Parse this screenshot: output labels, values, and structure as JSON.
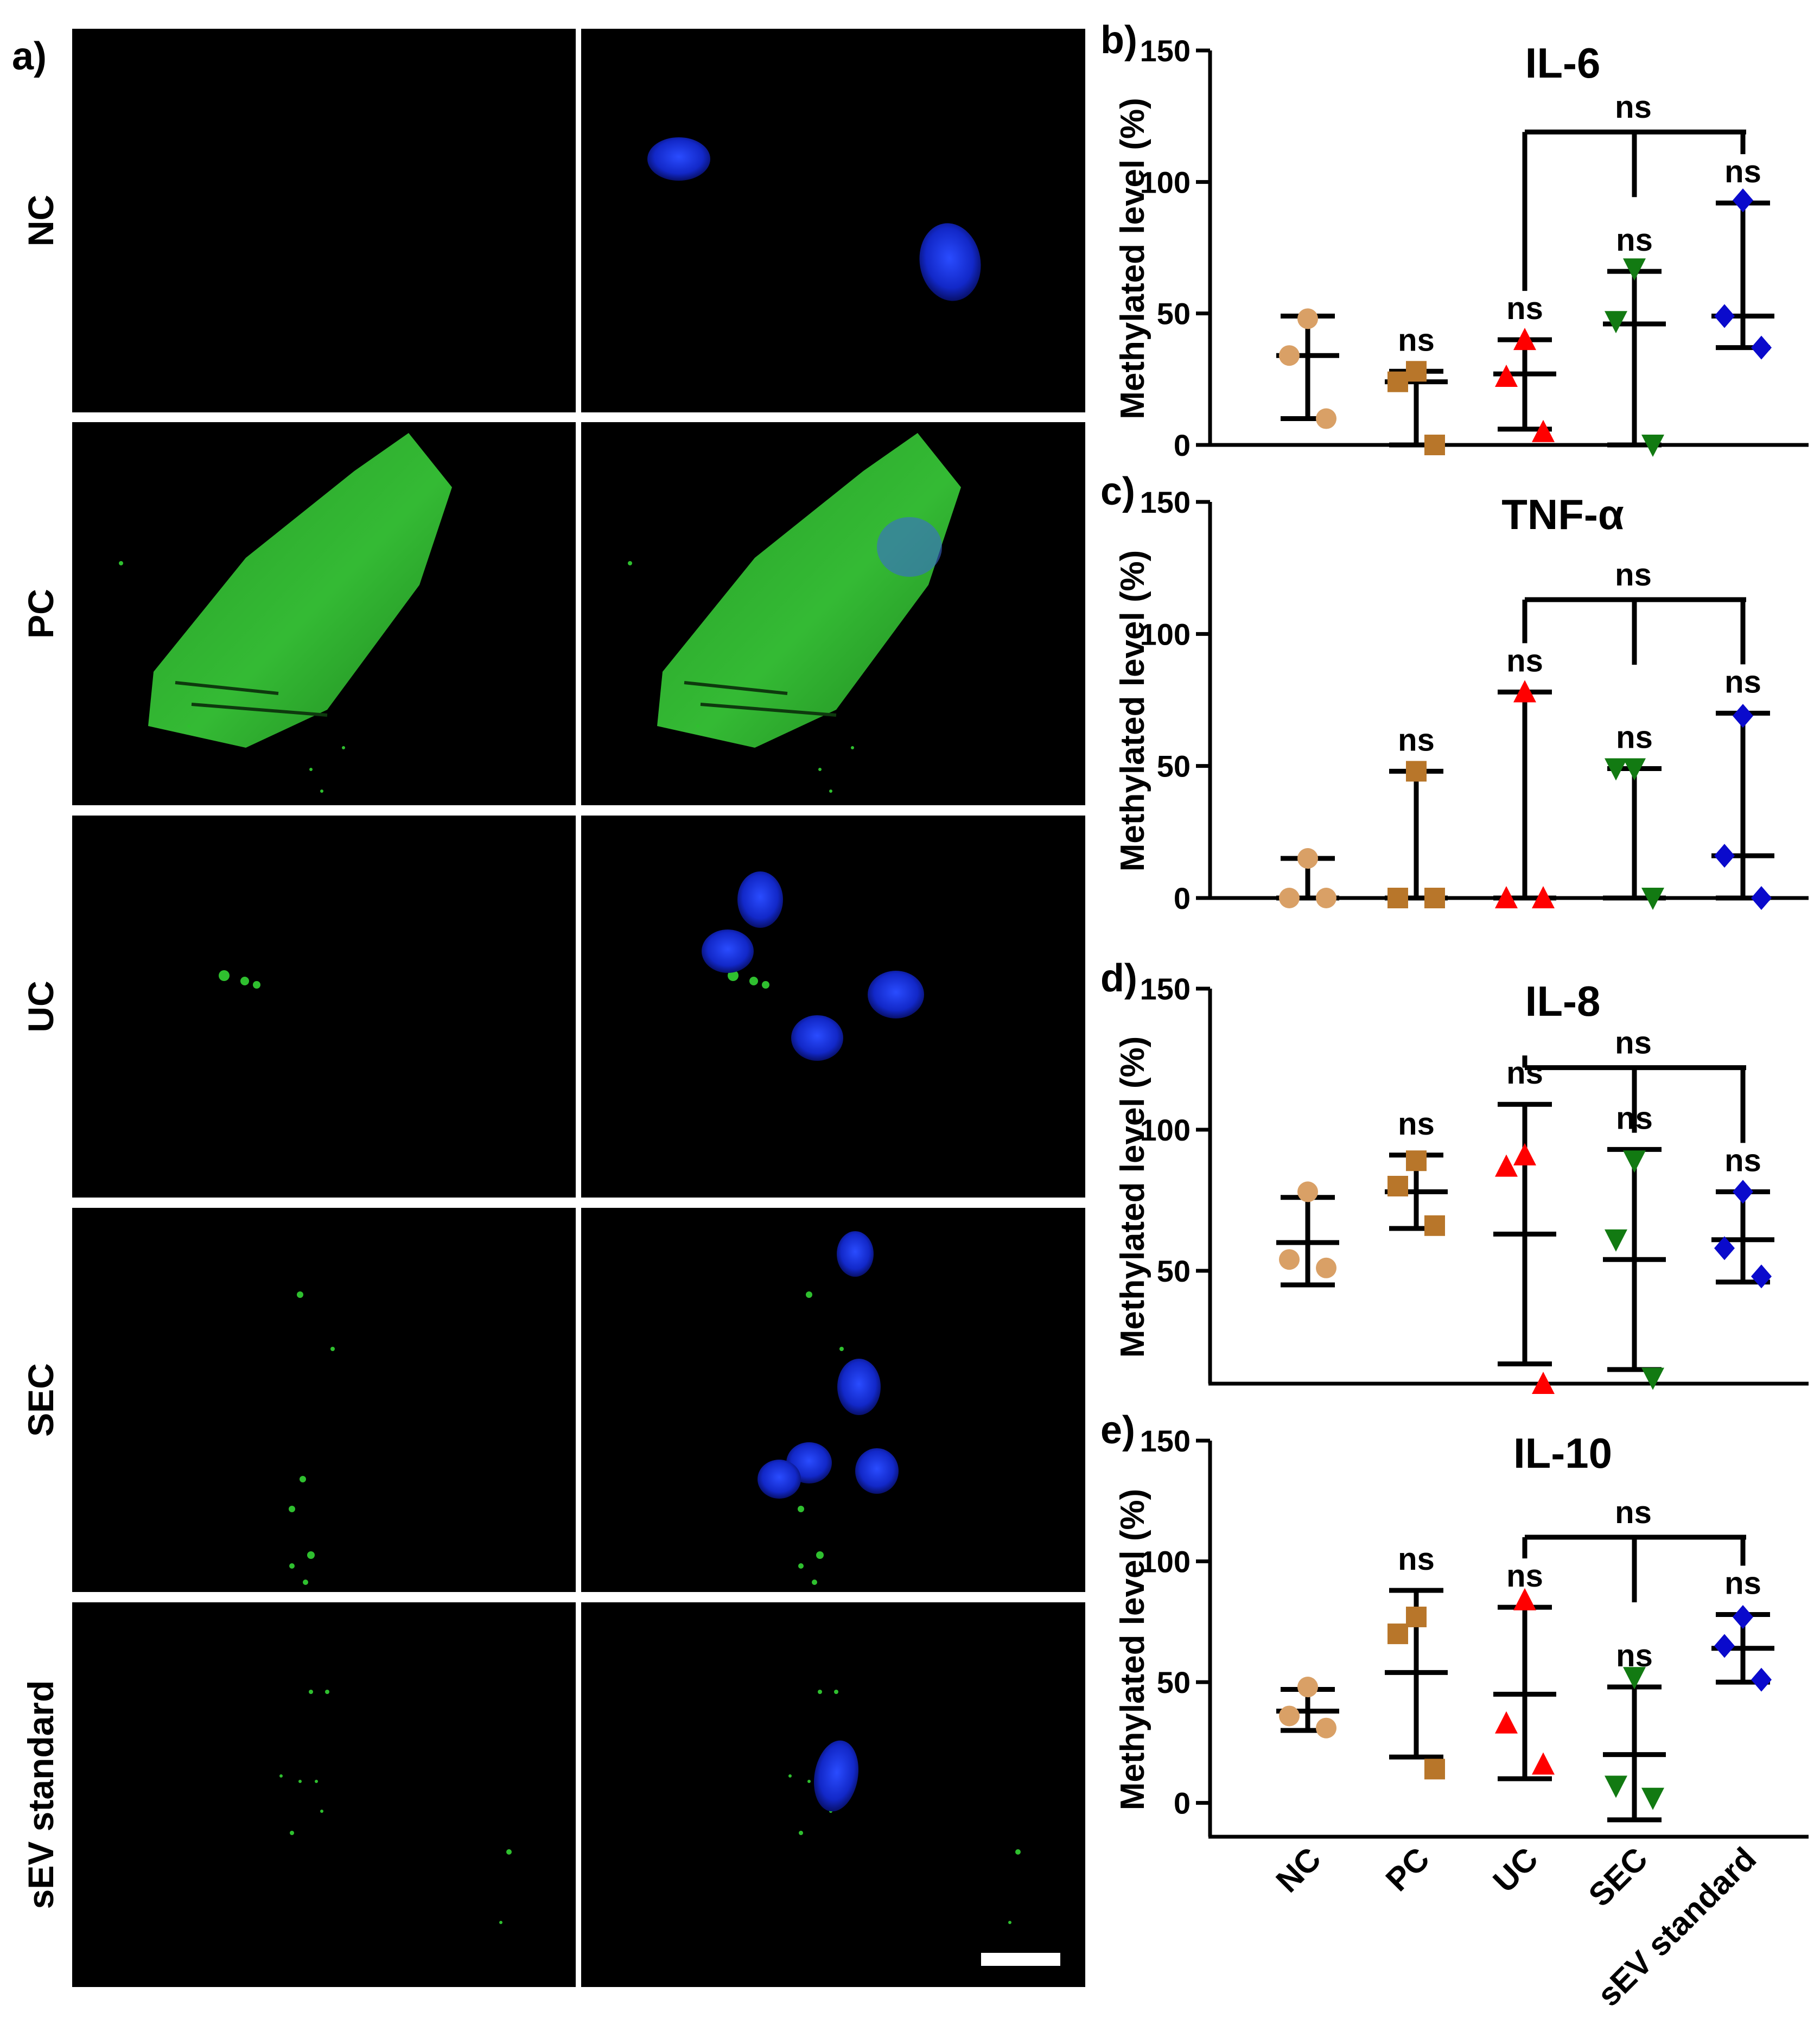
{
  "panel_a": {
    "letter": "a)",
    "rows": [
      "NC",
      "PC",
      "UC",
      "SEC",
      "sEV standard"
    ]
  },
  "categories": [
    "NC",
    "PC",
    "UC",
    "SEC",
    "sEV standard"
  ],
  "colors": {
    "NC": "#d9a066",
    "PC": "#b8762a",
    "UC": "#ff0000",
    "SEC": "#127a12",
    "sEV standard": "#0a0acc",
    "nucleus": "#1230d8",
    "membrane": "#2fbf2f"
  },
  "markers": {
    "NC": "circle",
    "PC": "square",
    "UC": "triangle-up",
    "SEC": "triangle-down",
    "sEV standard": "diamond"
  },
  "chart_data": [
    {
      "type": "scatter",
      "letter": "b)",
      "title": "IL-6",
      "ylabel": "Methylated level (%)",
      "ylim": [
        0,
        150
      ],
      "yticks": [
        0,
        50,
        100,
        150
      ],
      "series": [
        {
          "name": "NC",
          "points": [
            48,
            34,
            10
          ],
          "mean": 34,
          "upper": 49,
          "lower": 10
        },
        {
          "name": "PC",
          "points": [
            28,
            24,
            0
          ],
          "mean": 24,
          "upper": 28,
          "lower": 0
        },
        {
          "name": "UC",
          "points": [
            40,
            26,
            5
          ],
          "mean": 27,
          "upper": 40,
          "lower": 6
        },
        {
          "name": "SEC",
          "points": [
            67,
            47,
            0
          ],
          "mean": 46,
          "upper": 66,
          "lower": 0
        },
        {
          "name": "sEV standard",
          "points": [
            93,
            49,
            37
          ],
          "mean": 49,
          "upper": 92,
          "lower": 37
        }
      ],
      "significance": {
        "bracket_label": "ns",
        "bracket_y": 119,
        "labels": [
          "",
          "ns",
          "ns",
          "ns",
          "ns"
        ]
      }
    },
    {
      "type": "scatter",
      "letter": "c)",
      "title": "TNF-α",
      "ylabel": "Methylated level (%)",
      "ylim": [
        0,
        150
      ],
      "yticks": [
        0,
        50,
        100,
        150
      ],
      "series": [
        {
          "name": "NC",
          "points": [
            15,
            0,
            0
          ],
          "mean": 0,
          "upper": 15,
          "lower": 0
        },
        {
          "name": "PC",
          "points": [
            48,
            0,
            0
          ],
          "mean": 0,
          "upper": 48,
          "lower": 0
        },
        {
          "name": "UC",
          "points": [
            78,
            0,
            0
          ],
          "mean": 0,
          "upper": 78,
          "lower": 0
        },
        {
          "name": "SEC",
          "points": [
            49,
            49,
            0
          ],
          "mean": 0,
          "upper": 49,
          "lower": 0
        },
        {
          "name": "sEV standard",
          "points": [
            69,
            16,
            0
          ],
          "mean": 16,
          "upper": 70,
          "lower": 0
        }
      ],
      "significance": {
        "bracket_label": "ns",
        "bracket_y": 113,
        "labels": [
          "",
          "ns",
          "ns",
          "ns",
          "ns"
        ]
      }
    },
    {
      "type": "scatter",
      "letter": "d)",
      "title": "IL-8",
      "ylabel": "Methylated level (%)",
      "ylim": [
        10,
        150
      ],
      "yticks": [
        50,
        100,
        150
      ],
      "series": [
        {
          "name": "NC",
          "points": [
            78,
            54,
            51
          ],
          "mean": 60,
          "upper": 76,
          "lower": 45
        },
        {
          "name": "PC",
          "points": [
            89,
            80,
            66
          ],
          "mean": 78,
          "upper": 91,
          "lower": 65
        },
        {
          "name": "UC",
          "points": [
            91,
            87,
            10
          ],
          "mean": 63,
          "upper": 109,
          "lower": 17
        },
        {
          "name": "SEC",
          "points": [
            89,
            61,
            12
          ],
          "mean": 54,
          "upper": 93,
          "lower": 15
        },
        {
          "name": "sEV standard",
          "points": [
            78,
            58,
            48
          ],
          "mean": 61,
          "upper": 78,
          "lower": 46
        }
      ],
      "significance": {
        "bracket_label": "ns",
        "bracket_y": 122,
        "labels": [
          "",
          "ns",
          "ns",
          "ns",
          "ns"
        ]
      }
    },
    {
      "type": "scatter",
      "letter": "e)",
      "title": "IL-10",
      "ylabel": "Methylated level (%)",
      "ylim": [
        -14,
        150
      ],
      "yticks": [
        0,
        50,
        100,
        150
      ],
      "series": [
        {
          "name": "NC",
          "points": [
            48,
            36,
            31
          ],
          "mean": 38,
          "upper": 47,
          "lower": 30
        },
        {
          "name": "PC",
          "points": [
            77,
            70,
            14
          ],
          "mean": 54,
          "upper": 88,
          "lower": 19
        },
        {
          "name": "UC",
          "points": [
            84,
            33,
            16
          ],
          "mean": 45,
          "upper": 81,
          "lower": 10
        },
        {
          "name": "SEC",
          "points": [
            52,
            7,
            2
          ],
          "mean": 20,
          "upper": 48,
          "lower": -7
        },
        {
          "name": "sEV standard",
          "points": [
            77,
            65,
            51
          ],
          "mean": 64,
          "upper": 78,
          "lower": 50
        }
      ],
      "significance": {
        "bracket_label": "ns",
        "bracket_y": 110,
        "labels": [
          "",
          "ns",
          "ns",
          "ns",
          "ns"
        ]
      }
    }
  ]
}
